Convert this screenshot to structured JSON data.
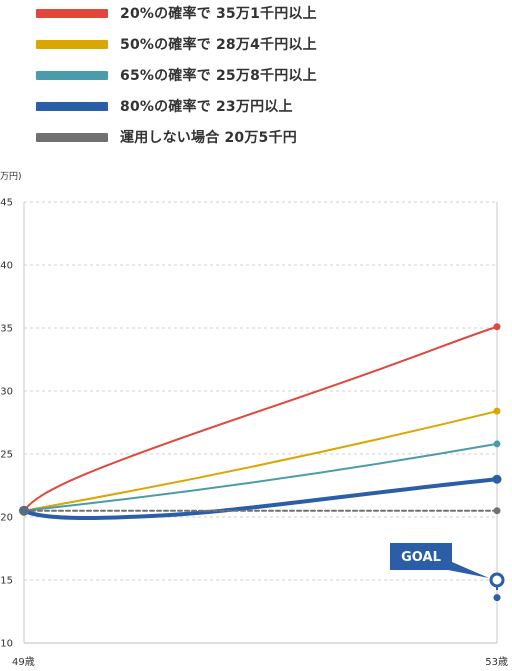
{
  "legend": [
    {
      "label": "20%の確率で  35万1千円以上",
      "color": "#e0483c"
    },
    {
      "label": "50%の確率で  28万4千円以上",
      "color": "#dca600"
    },
    {
      "label": "65%の確率で  25万8千円以上",
      "color": "#4a9cab"
    },
    {
      "label": "80%の確率で  23万円以上",
      "color": "#2a5ea7"
    },
    {
      "label": "運用しない場合 20万5千円",
      "color": "#707070"
    }
  ],
  "unit": "万円)",
  "goal_label": "GOAL",
  "chart_data": {
    "type": "line",
    "x": [
      "49歳",
      "53歳"
    ],
    "ylim": [
      10,
      45
    ],
    "yticks": [
      10,
      15,
      20,
      25,
      30,
      35,
      40,
      45
    ],
    "grid": true,
    "series": [
      {
        "name": "20%の確率で  35万1千円以上",
        "start": 20.5,
        "end": 35.1,
        "color": "#e0483c"
      },
      {
        "name": "50%の確率で  28万4千円以上",
        "start": 20.5,
        "end": 28.4,
        "color": "#dca600"
      },
      {
        "name": "65%の確率で  25万8千円以上",
        "start": 20.5,
        "end": 25.8,
        "color": "#4a9cab"
      },
      {
        "name": "80%の確率で  23万円以上",
        "start": 20.5,
        "end": 23.0,
        "color": "#2a5ea7"
      },
      {
        "name": "運用しない場合 20万5千円",
        "start": 20.5,
        "end": 20.5,
        "color": "#707070"
      }
    ],
    "goal_marker": {
      "values": [
        15.0,
        13.6
      ],
      "color": "#2a5ea7"
    }
  }
}
